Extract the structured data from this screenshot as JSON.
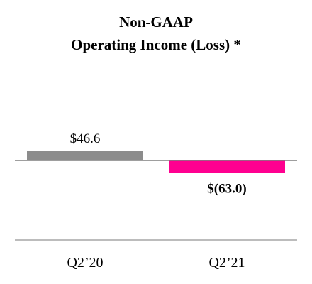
{
  "chart_data": {
    "type": "bar",
    "title_lines": [
      "Non-GAAP",
      "Operating Income (Loss) *"
    ],
    "categories": [
      "Q2’20",
      "Q2’21"
    ],
    "values": [
      46.6,
      -63.0
    ],
    "value_labels": [
      "$46.6",
      "$(63.0)"
    ],
    "value_label_bold": [
      false,
      true
    ],
    "colors": [
      "#8c8c8c",
      "#ff0090"
    ],
    "ylim": [
      -130,
      60
    ],
    "xlabel": "",
    "ylabel": "",
    "grid": false,
    "legend": "none"
  }
}
